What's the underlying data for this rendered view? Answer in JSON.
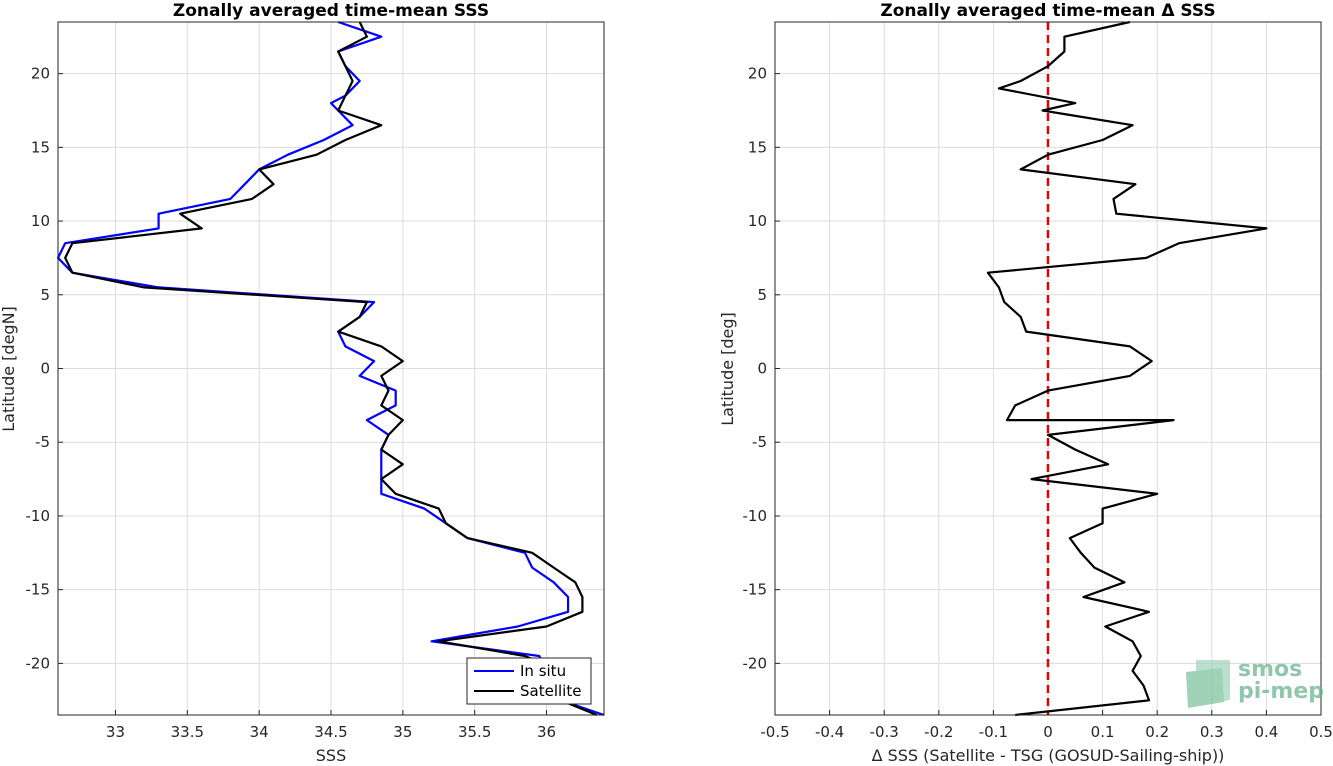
{
  "chart_data": [
    {
      "type": "line",
      "title": "Zonally averaged time-mean SSS",
      "xlabel": "SSS",
      "ylabel": "Latitude [degN]",
      "xlim": [
        32.6,
        36.4
      ],
      "ylim": [
        -23.5,
        23.5
      ],
      "xticks": [
        33,
        33.5,
        34,
        34.5,
        35,
        35.5,
        36
      ],
      "xtick_labels": [
        "33",
        "33.5",
        "34",
        "34.5",
        "35",
        "35.5",
        "36"
      ],
      "yticks": [
        -20,
        -15,
        -10,
        -5,
        0,
        5,
        10,
        15,
        20
      ],
      "ytick_labels": [
        "-20",
        "-15",
        "-10",
        "-5",
        "0",
        "5",
        "10",
        "15",
        "20"
      ],
      "grid": true,
      "legend": "bottom-right",
      "series": [
        {
          "name": "In situ",
          "color": "#0000ff",
          "points": [
            [
              34.55,
              23.5
            ],
            [
              34.85,
              22.5
            ],
            [
              34.55,
              21.5
            ],
            [
              34.6,
              20.5
            ],
            [
              34.7,
              19.5
            ],
            [
              34.6,
              18.5
            ],
            [
              34.5,
              18.0
            ],
            [
              34.55,
              17.5
            ],
            [
              34.65,
              16.5
            ],
            [
              34.45,
              15.5
            ],
            [
              34.2,
              14.5
            ],
            [
              34.0,
              13.5
            ],
            [
              33.9,
              12.5
            ],
            [
              33.8,
              11.5
            ],
            [
              33.3,
              10.5
            ],
            [
              33.3,
              9.5
            ],
            [
              32.65,
              8.5
            ],
            [
              32.6,
              7.5
            ],
            [
              32.7,
              6.5
            ],
            [
              33.3,
              5.5
            ],
            [
              34.8,
              4.5
            ],
            [
              34.7,
              3.5
            ],
            [
              34.55,
              2.5
            ],
            [
              34.6,
              1.5
            ],
            [
              34.8,
              0.5
            ],
            [
              34.7,
              -0.5
            ],
            [
              34.95,
              -1.5
            ],
            [
              34.95,
              -2.5
            ],
            [
              34.75,
              -3.5
            ],
            [
              34.9,
              -4.5
            ],
            [
              34.85,
              -5.5
            ],
            [
              34.85,
              -6.5
            ],
            [
              34.85,
              -7.5
            ],
            [
              34.85,
              -8.5
            ],
            [
              35.15,
              -9.5
            ],
            [
              35.3,
              -10.5
            ],
            [
              35.45,
              -11.5
            ],
            [
              35.85,
              -12.5
            ],
            [
              35.9,
              -13.5
            ],
            [
              36.05,
              -14.5
            ],
            [
              36.15,
              -15.5
            ],
            [
              36.15,
              -16.5
            ],
            [
              35.8,
              -17.5
            ],
            [
              35.2,
              -18.5
            ],
            [
              35.95,
              -19.5
            ],
            [
              36.0,
              -20.5
            ],
            [
              36.05,
              -21.5
            ],
            [
              36.1,
              -22.5
            ],
            [
              36.4,
              -23.5
            ]
          ]
        },
        {
          "name": "Satellite",
          "color": "#000000",
          "points": [
            [
              34.7,
              23.5
            ],
            [
              34.75,
              22.5
            ],
            [
              34.55,
              21.5
            ],
            [
              34.6,
              20.5
            ],
            [
              34.65,
              19.5
            ],
            [
              34.6,
              18.5
            ],
            [
              34.55,
              17.5
            ],
            [
              34.85,
              16.5
            ],
            [
              34.6,
              15.5
            ],
            [
              34.4,
              14.5
            ],
            [
              34.0,
              13.5
            ],
            [
              34.1,
              12.5
            ],
            [
              33.95,
              11.5
            ],
            [
              33.45,
              10.5
            ],
            [
              33.6,
              9.5
            ],
            [
              32.7,
              8.5
            ],
            [
              32.65,
              7.5
            ],
            [
              32.7,
              6.5
            ],
            [
              33.2,
              5.5
            ],
            [
              34.75,
              4.5
            ],
            [
              34.7,
              3.5
            ],
            [
              34.55,
              2.5
            ],
            [
              34.85,
              1.5
            ],
            [
              35.0,
              0.5
            ],
            [
              34.85,
              -0.5
            ],
            [
              34.9,
              -1.5
            ],
            [
              34.85,
              -2.5
            ],
            [
              35.0,
              -3.5
            ],
            [
              34.9,
              -4.5
            ],
            [
              34.85,
              -5.5
            ],
            [
              35.0,
              -6.5
            ],
            [
              34.85,
              -7.5
            ],
            [
              34.95,
              -8.5
            ],
            [
              35.25,
              -9.5
            ],
            [
              35.3,
              -10.5
            ],
            [
              35.45,
              -11.5
            ],
            [
              35.9,
              -12.5
            ],
            [
              36.05,
              -13.5
            ],
            [
              36.2,
              -14.5
            ],
            [
              36.25,
              -15.5
            ],
            [
              36.25,
              -16.5
            ],
            [
              36.0,
              -17.5
            ],
            [
              35.25,
              -18.5
            ],
            [
              35.85,
              -19.5
            ],
            [
              36.1,
              -20.5
            ],
            [
              36.05,
              -21.5
            ],
            [
              36.1,
              -22.5
            ],
            [
              36.35,
              -23.5
            ]
          ]
        }
      ]
    },
    {
      "type": "line",
      "title": "Zonally averaged time-mean Δ SSS",
      "xlabel": "Δ SSS (Satellite - TSG (GOSUD-Sailing-ship))",
      "ylabel": "Latitude [deg]",
      "xlim": [
        -0.5,
        0.5
      ],
      "ylim": [
        -23.5,
        23.5
      ],
      "xticks": [
        -0.5,
        -0.4,
        -0.3,
        -0.2,
        -0.1,
        0,
        0.1,
        0.2,
        0.3,
        0.4,
        0.5
      ],
      "xtick_labels": [
        "-0.5",
        "-0.4",
        "-0.3",
        "-0.2",
        "-0.1",
        "0",
        "0.1",
        "0.2",
        "0.3",
        "0.4",
        "0.5"
      ],
      "yticks": [
        -20,
        -15,
        -10,
        -5,
        0,
        5,
        10,
        15,
        20
      ],
      "ytick_labels": [
        "-20",
        "-15",
        "-10",
        "-5",
        "0",
        "5",
        "10",
        "15",
        "20"
      ],
      "grid": true,
      "reference_line": {
        "x": 0,
        "color": "#e00000",
        "style": "dashed"
      },
      "series": [
        {
          "color": "#000000",
          "points": [
            [
              0.15,
              23.5
            ],
            [
              0.03,
              22.5
            ],
            [
              0.03,
              21.5
            ],
            [
              0.0,
              20.5
            ],
            [
              -0.05,
              19.5
            ],
            [
              -0.09,
              19.0
            ],
            [
              0.05,
              18.0
            ],
            [
              -0.01,
              17.5
            ],
            [
              0.155,
              16.5
            ],
            [
              0.1,
              15.5
            ],
            [
              0.0,
              14.5
            ],
            [
              -0.05,
              13.5
            ],
            [
              0.16,
              12.5
            ],
            [
              0.12,
              11.5
            ],
            [
              0.125,
              10.5
            ],
            [
              0.4,
              9.5
            ],
            [
              0.24,
              8.5
            ],
            [
              0.18,
              7.5
            ],
            [
              -0.11,
              6.5
            ],
            [
              -0.09,
              5.5
            ],
            [
              -0.08,
              4.5
            ],
            [
              -0.05,
              3.5
            ],
            [
              -0.04,
              2.5
            ],
            [
              0.15,
              1.5
            ],
            [
              0.19,
              0.5
            ],
            [
              0.15,
              -0.5
            ],
            [
              0.0,
              -1.5
            ],
            [
              -0.06,
              -2.5
            ],
            [
              -0.075,
              -3.5
            ],
            [
              0.23,
              -3.5
            ],
            [
              0.0,
              -4.5
            ],
            [
              0.05,
              -5.5
            ],
            [
              0.11,
              -6.5
            ],
            [
              -0.03,
              -7.5
            ],
            [
              0.2,
              -8.5
            ],
            [
              0.1,
              -9.5
            ],
            [
              0.1,
              -10.5
            ],
            [
              0.04,
              -11.5
            ],
            [
              0.06,
              -12.5
            ],
            [
              0.085,
              -13.5
            ],
            [
              0.14,
              -14.5
            ],
            [
              0.065,
              -15.5
            ],
            [
              0.185,
              -16.5
            ],
            [
              0.105,
              -17.5
            ],
            [
              0.155,
              -18.5
            ],
            [
              0.17,
              -19.5
            ],
            [
              0.155,
              -20.5
            ],
            [
              0.175,
              -21.5
            ],
            [
              0.185,
              -22.5
            ],
            [
              -0.06,
              -23.5
            ]
          ]
        }
      ]
    }
  ],
  "logo": {
    "line1": "smos",
    "line2": "pi-mep",
    "color": "#6cb390"
  }
}
